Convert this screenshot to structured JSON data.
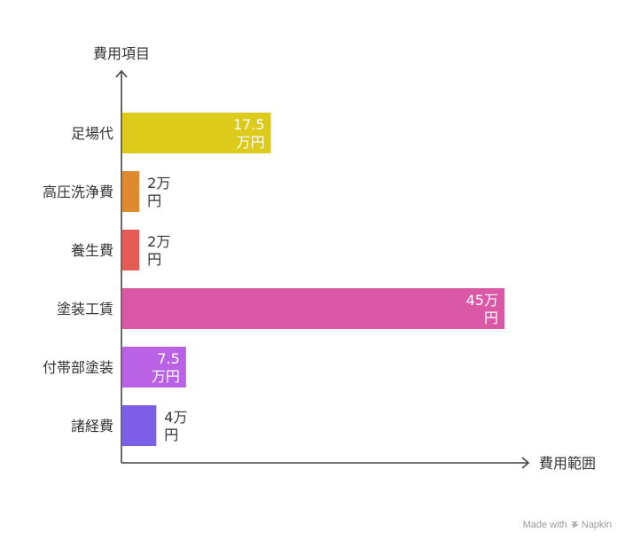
{
  "chart_data": {
    "type": "bar",
    "orientation": "horizontal",
    "ylabel": "費用項目",
    "xlabel": "費用範囲",
    "categories": [
      "足場代",
      "高圧洗浄費",
      "養生費",
      "塗装工賃",
      "付帯部塗装",
      "諸経費"
    ],
    "values": [
      17.5,
      2,
      2,
      45,
      7.5,
      4
    ],
    "value_labels": [
      [
        "17.5",
        "万円"
      ],
      [
        "2万",
        "円"
      ],
      [
        "2万",
        "円"
      ],
      [
        "45万",
        "円"
      ],
      [
        "7.5",
        "万円"
      ],
      [
        "4万",
        "円"
      ]
    ],
    "colors": [
      "#DCCB1A",
      "#E08A30",
      "#E65A55",
      "#DB58A6",
      "#B962E5",
      "#7B5FE6"
    ],
    "xlim": [
      0,
      45
    ],
    "grid": false,
    "legend": "none"
  },
  "footer": {
    "text": "Made with",
    "brand": "Napkin"
  }
}
